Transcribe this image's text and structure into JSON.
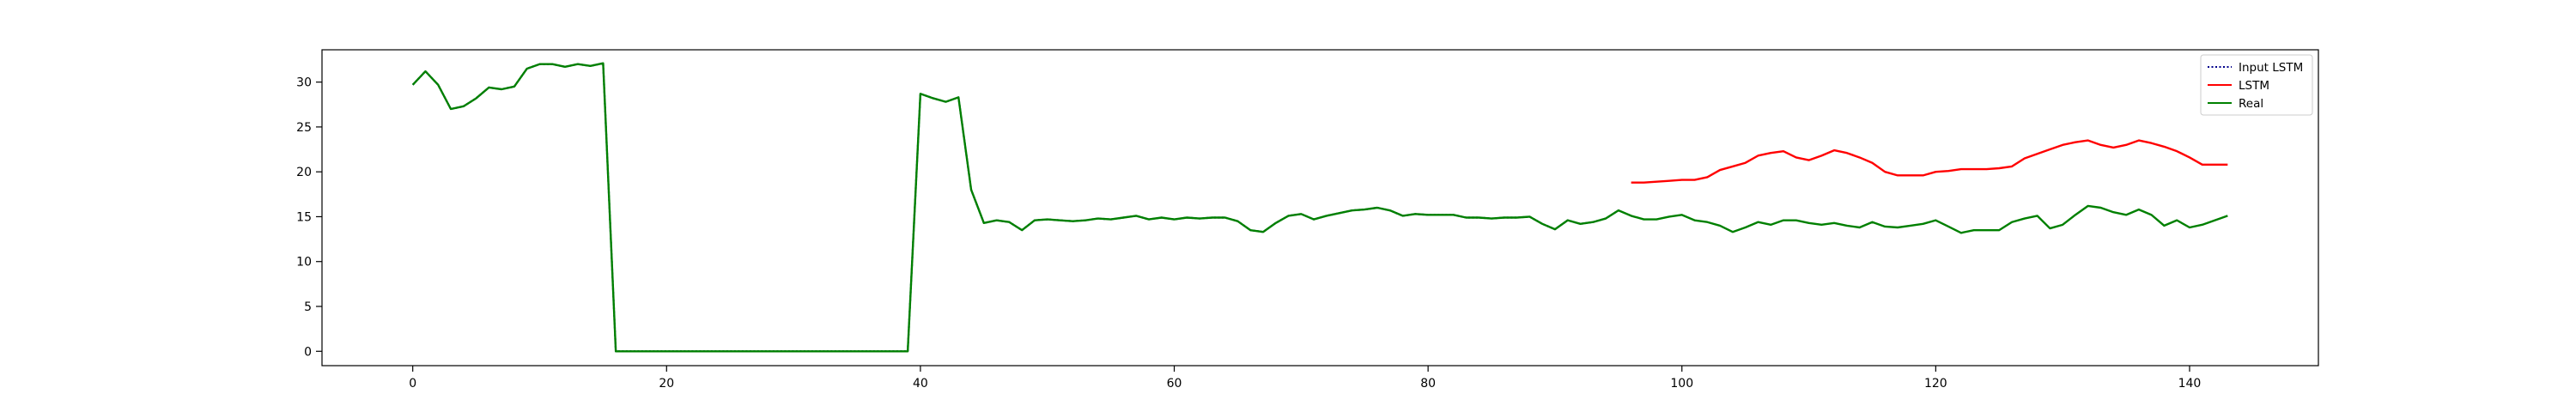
{
  "chart_data": {
    "type": "line",
    "title": "",
    "xlabel": "",
    "ylabel": "",
    "xlim": [
      -7.15,
      150.15
    ],
    "ylim": [
      -1.6,
      33.6
    ],
    "x_ticks": [
      0,
      20,
      40,
      60,
      80,
      100,
      120,
      140
    ],
    "y_ticks": [
      0,
      5,
      10,
      15,
      20,
      25,
      30
    ],
    "grid": false,
    "legend_position": "top-right",
    "series": [
      {
        "name": "Input LSTM",
        "color": "#00008b",
        "style": "dotted",
        "x_start": 0,
        "values": [
          29.7,
          31.2,
          29.7,
          27.0,
          27.3,
          28.2,
          29.4,
          29.2,
          29.5,
          31.5,
          32.0,
          32.0,
          31.7,
          32.0,
          31.8,
          32.1,
          0,
          0,
          0,
          0,
          0,
          0,
          0,
          0,
          0,
          0,
          0,
          0,
          0,
          0,
          0,
          0,
          0,
          0,
          0,
          0,
          0,
          0,
          0,
          0,
          28.7,
          28.2,
          27.8,
          28.3,
          18.0,
          14.3,
          14.6,
          14.4,
          13.5,
          14.6,
          14.7,
          14.6,
          14.5,
          14.6,
          14.8,
          14.7,
          14.9,
          15.1,
          14.7,
          14.9,
          14.7,
          14.9,
          14.8,
          14.9,
          14.9,
          14.5,
          13.5,
          13.3,
          14.3,
          15.1,
          15.3,
          14.7,
          15.1,
          15.4,
          15.7,
          15.8,
          16.0,
          15.7,
          15.1,
          15.3,
          15.2,
          15.2,
          15.2,
          14.9,
          14.9,
          14.8,
          14.9,
          14.9,
          15.0,
          14.2,
          13.6,
          14.6,
          14.2,
          14.4,
          14.8,
          15.7
        ]
      },
      {
        "name": "LSTM",
        "color": "#ff0000",
        "style": "solid",
        "x_start": 96,
        "values": [
          18.8,
          18.8,
          18.9,
          19.0,
          19.1,
          19.1,
          19.4,
          20.2,
          20.6,
          21.0,
          21.8,
          22.1,
          22.3,
          21.6,
          21.3,
          21.8,
          22.4,
          22.1,
          21.6,
          21.0,
          20.0,
          19.6,
          19.6,
          19.6,
          20.0,
          20.1,
          20.3,
          20.3,
          20.3,
          20.4,
          20.6,
          21.5,
          22.0,
          22.5,
          23.0,
          23.3,
          23.5,
          23.0,
          22.7,
          23.0,
          23.5,
          23.2,
          22.8,
          22.3,
          21.6,
          20.8,
          20.8,
          20.8
        ]
      },
      {
        "name": "Real",
        "color": "#008000",
        "style": "solid",
        "x_start": 0,
        "values": [
          29.7,
          31.2,
          29.7,
          27.0,
          27.3,
          28.2,
          29.4,
          29.2,
          29.5,
          31.5,
          32.0,
          32.0,
          31.7,
          32.0,
          31.8,
          32.1,
          0,
          0,
          0,
          0,
          0,
          0,
          0,
          0,
          0,
          0,
          0,
          0,
          0,
          0,
          0,
          0,
          0,
          0,
          0,
          0,
          0,
          0,
          0,
          0,
          28.7,
          28.2,
          27.8,
          28.3,
          18.0,
          14.3,
          14.6,
          14.4,
          13.5,
          14.6,
          14.7,
          14.6,
          14.5,
          14.6,
          14.8,
          14.7,
          14.9,
          15.1,
          14.7,
          14.9,
          14.7,
          14.9,
          14.8,
          14.9,
          14.9,
          14.5,
          13.5,
          13.3,
          14.3,
          15.1,
          15.3,
          14.7,
          15.1,
          15.4,
          15.7,
          15.8,
          16.0,
          15.7,
          15.1,
          15.3,
          15.2,
          15.2,
          15.2,
          14.9,
          14.9,
          14.8,
          14.9,
          14.9,
          15.0,
          14.2,
          13.6,
          14.6,
          14.2,
          14.4,
          14.8,
          15.7,
          15.1,
          14.7,
          14.7,
          15.0,
          15.2,
          14.6,
          14.4,
          14.0,
          13.3,
          13.8,
          14.4,
          14.1,
          14.6,
          14.6,
          14.3,
          14.1,
          14.3,
          14.0,
          13.8,
          14.4,
          13.9,
          13.8,
          14.0,
          14.2,
          14.6,
          13.9,
          13.2,
          13.5,
          13.5,
          13.5,
          14.4,
          14.8,
          15.1,
          13.7,
          14.1,
          15.2,
          16.2,
          16.0,
          15.5,
          15.2,
          15.8,
          15.2,
          14.0,
          14.6,
          13.8,
          14.1,
          14.6,
          15.1
        ]
      }
    ]
  }
}
